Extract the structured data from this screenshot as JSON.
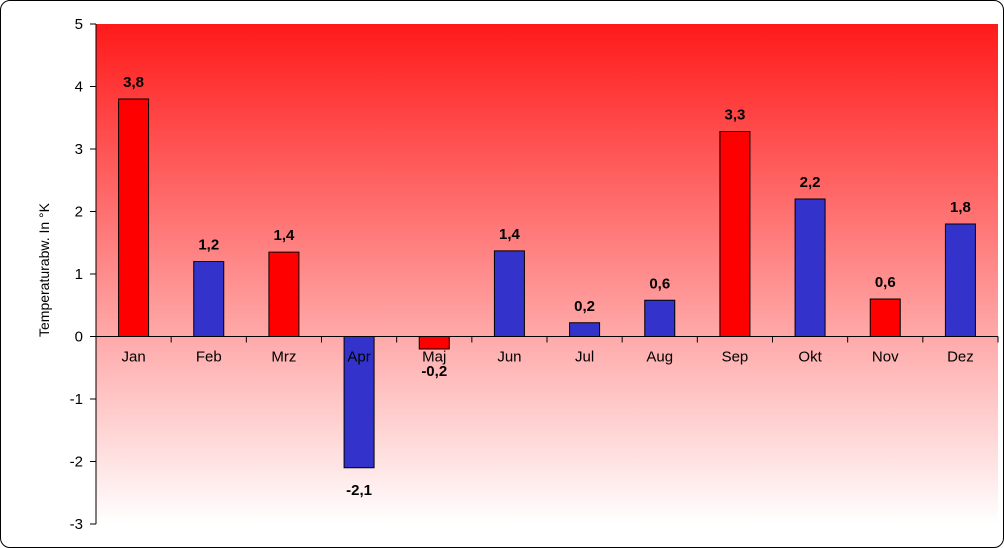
{
  "chart_data": {
    "type": "bar",
    "categories": [
      "Jan",
      "Feb",
      "Mrz",
      "Apr",
      "Maj",
      "Jun",
      "Jul",
      "Aug",
      "Sep",
      "Okt",
      "Nov",
      "Dez"
    ],
    "values": [
      3.8,
      1.2,
      1.35,
      -2.1,
      -0.2,
      1.37,
      0.22,
      0.58,
      3.28,
      2.2,
      0.6,
      1.8
    ],
    "data_labels": [
      "3,8",
      "1,2",
      "1,4",
      "-2,1",
      "-0,2",
      "1,4",
      "0,2",
      "0,6",
      "3,3",
      "2,2",
      "0,6",
      "1,8"
    ],
    "bar_colors": [
      "#ff0000",
      "#3333cc",
      "#ff0000",
      "#3333cc",
      "#ff0000",
      "#3333cc",
      "#3333cc",
      "#3333cc",
      "#ff0000",
      "#3333cc",
      "#ff0000",
      "#3333cc"
    ],
    "ylabel": "Temperaturabw.  In °K",
    "xlabel": "",
    "ylim": [
      -3,
      5
    ],
    "yticks": [
      5,
      4,
      3,
      2,
      1,
      0,
      -1,
      -2,
      -3
    ],
    "background_gradient": [
      "#ff1a1a",
      "#ffffff"
    ],
    "grid": false,
    "legend": "none"
  }
}
